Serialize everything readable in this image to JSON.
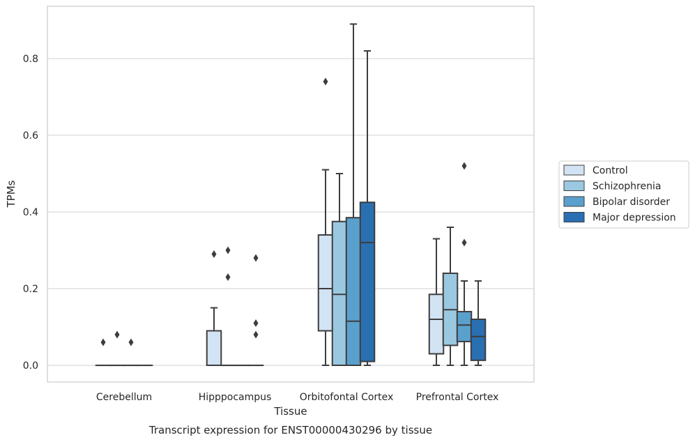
{
  "chart_data": {
    "type": "box",
    "caption": "Transcript expression for ENST00000430296 by tissue",
    "xlabel": "Tissue",
    "ylabel": "TPMs",
    "ylim": [
      -0.042,
      0.935
    ],
    "yticks": [
      0.0,
      0.2,
      0.4,
      0.6,
      0.8
    ],
    "ytick_labels": [
      "0.0",
      "0.2",
      "0.4",
      "0.6",
      "0.8"
    ],
    "grid": "horizontal",
    "legend_position": "right",
    "categories": [
      "Cerebellum",
      "Hipppocampus",
      "Orbitofontal Cortex",
      "Prefrontal Cortex"
    ],
    "series": [
      {
        "name": "Control",
        "color": "#d2e3f3",
        "boxes": [
          {
            "whisker_low": 0,
            "q1": 0,
            "median": 0,
            "q3": 0,
            "whisker_high": 0,
            "outliers": [
              0.06
            ]
          },
          {
            "whisker_low": 0,
            "q1": 0,
            "median": 0,
            "q3": 0.09,
            "whisker_high": 0.15,
            "outliers": [
              0.29
            ]
          },
          {
            "whisker_low": 0,
            "q1": 0.09,
            "median": 0.2,
            "q3": 0.34,
            "whisker_high": 0.51,
            "outliers": [
              0.74
            ]
          },
          {
            "whisker_low": 0,
            "q1": 0.03,
            "median": 0.12,
            "q3": 0.185,
            "whisker_high": 0.33,
            "outliers": []
          }
        ]
      },
      {
        "name": "Schizophrenia",
        "color": "#9ac8e0",
        "boxes": [
          {
            "whisker_low": 0,
            "q1": 0,
            "median": 0,
            "q3": 0,
            "whisker_high": 0,
            "outliers": [
              0.08
            ]
          },
          {
            "whisker_low": 0,
            "q1": 0,
            "median": 0,
            "q3": 0,
            "whisker_high": 0,
            "outliers": [
              0.3,
              0.23
            ]
          },
          {
            "whisker_low": 0,
            "q1": 0,
            "median": 0.185,
            "q3": 0.375,
            "whisker_high": 0.5,
            "outliers": []
          },
          {
            "whisker_low": 0,
            "q1": 0.052,
            "median": 0.145,
            "q3": 0.24,
            "whisker_high": 0.36,
            "outliers": []
          }
        ]
      },
      {
        "name": "Bipolar disorder",
        "color": "#5aa0cd",
        "boxes": [
          {
            "whisker_low": 0,
            "q1": 0,
            "median": 0,
            "q3": 0,
            "whisker_high": 0,
            "outliers": [
              0.06
            ]
          },
          {
            "whisker_low": 0,
            "q1": 0,
            "median": 0,
            "q3": 0,
            "whisker_high": 0,
            "outliers": []
          },
          {
            "whisker_low": 0,
            "q1": 0,
            "median": 0.115,
            "q3": 0.385,
            "whisker_high": 0.89,
            "outliers": []
          },
          {
            "whisker_low": 0,
            "q1": 0.062,
            "median": 0.105,
            "q3": 0.14,
            "whisker_high": 0.22,
            "outliers": [
              0.52,
              0.32
            ]
          }
        ]
      },
      {
        "name": "Major depression",
        "color": "#2a6fb1",
        "boxes": [
          {
            "whisker_low": 0,
            "q1": 0,
            "median": 0,
            "q3": 0,
            "whisker_high": 0,
            "outliers": []
          },
          {
            "whisker_low": 0,
            "q1": 0,
            "median": 0,
            "q3": 0,
            "whisker_high": 0,
            "outliers": [
              0.28,
              0.11,
              0.08
            ]
          },
          {
            "whisker_low": 0,
            "q1": 0.01,
            "median": 0.32,
            "q3": 0.425,
            "whisker_high": 0.82,
            "outliers": []
          },
          {
            "whisker_low": 0,
            "q1": 0.013,
            "median": 0.075,
            "q3": 0.12,
            "whisker_high": 0.22,
            "outliers": []
          }
        ]
      }
    ]
  }
}
